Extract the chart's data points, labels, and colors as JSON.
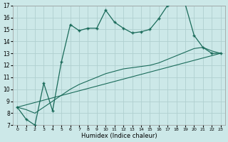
{
  "xlabel": "Humidex (Indice chaleur)",
  "bg_color": "#cce8e8",
  "grid_color": "#b0d0d0",
  "line_color": "#1a6b5a",
  "xlim": [
    -0.5,
    23.5
  ],
  "ylim": [
    7,
    17
  ],
  "xticks": [
    0,
    1,
    2,
    3,
    4,
    5,
    6,
    7,
    8,
    9,
    10,
    11,
    12,
    13,
    14,
    15,
    16,
    17,
    18,
    19,
    20,
    21,
    22,
    23
  ],
  "yticks": [
    7,
    8,
    9,
    10,
    11,
    12,
    13,
    14,
    15,
    16,
    17
  ],
  "main_x": [
    0,
    1,
    2,
    3,
    4,
    5,
    6,
    7,
    8,
    9,
    10,
    11,
    12,
    13,
    14,
    15,
    16,
    17,
    18,
    19,
    20,
    21,
    22,
    23
  ],
  "main_y": [
    8.5,
    7.5,
    7.0,
    10.5,
    8.2,
    12.3,
    15.4,
    14.9,
    15.1,
    15.1,
    16.6,
    15.6,
    15.1,
    14.7,
    14.8,
    15.0,
    15.9,
    17.0,
    17.2,
    17.1,
    14.5,
    13.5,
    13.0,
    13.0
  ],
  "trend_x": [
    0,
    23
  ],
  "trend_y": [
    8.5,
    13.0
  ],
  "smooth_x": [
    0,
    1,
    2,
    3,
    4,
    5,
    6,
    7,
    8,
    9,
    10,
    11,
    12,
    13,
    14,
    15,
    16,
    17,
    18,
    19,
    20,
    21,
    22,
    23
  ],
  "smooth_y": [
    8.5,
    8.3,
    8.0,
    8.5,
    9.0,
    9.5,
    10.0,
    10.4,
    10.7,
    11.0,
    11.3,
    11.5,
    11.7,
    11.8,
    11.9,
    12.0,
    12.2,
    12.5,
    12.8,
    13.1,
    13.4,
    13.5,
    13.2,
    13.0
  ]
}
